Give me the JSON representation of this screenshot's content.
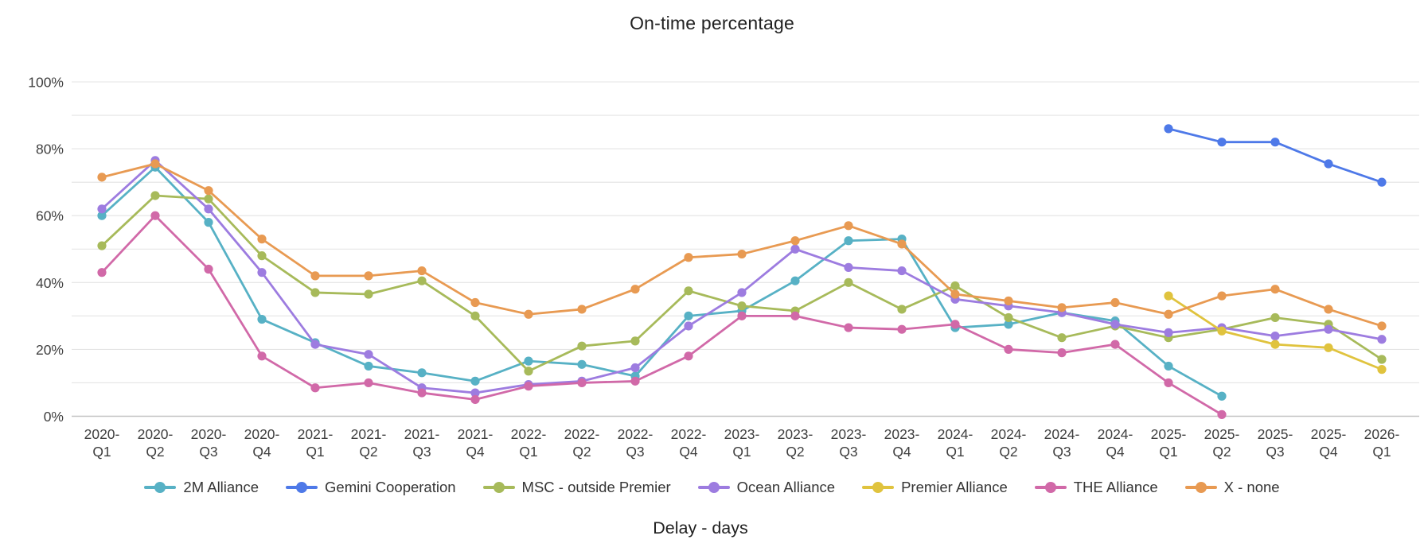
{
  "chart_data": {
    "type": "line",
    "title": "On-time percentage",
    "xlabel": "Delay - days",
    "ylabel": "",
    "ylim": [
      0,
      100
    ],
    "y_labeled_ticks": [
      0,
      20,
      40,
      60,
      80,
      100
    ],
    "y_tick_suffix": "%",
    "grid_step": 10,
    "grid_on": true,
    "legend_position": "bottom",
    "categories": [
      "2020-Q1",
      "2020-Q2",
      "2020-Q3",
      "2020-Q4",
      "2021-Q1",
      "2021-Q2",
      "2021-Q3",
      "2021-Q4",
      "2022-Q1",
      "2022-Q2",
      "2022-Q3",
      "2022-Q4",
      "2023-Q1",
      "2023-Q2",
      "2023-Q3",
      "2023-Q4",
      "2024-Q1",
      "2024-Q2",
      "2024-Q3",
      "2024-Q4",
      "2025-Q1",
      "2025-Q2",
      "2025-Q3",
      "2025-Q4",
      "2026-Q1"
    ],
    "series": [
      {
        "name": "2M Alliance",
        "color": "#57b1c5",
        "values": [
          60,
          74.5,
          58,
          29,
          22,
          15,
          13,
          10.5,
          16.5,
          15.5,
          12,
          30,
          31.5,
          40.5,
          52.5,
          53,
          26.5,
          27.5,
          31,
          28.5,
          15,
          6,
          null,
          null,
          null
        ]
      },
      {
        "name": "Gemini Cooperation",
        "color": "#4e79e8",
        "values": [
          null,
          null,
          null,
          null,
          null,
          null,
          null,
          null,
          null,
          null,
          null,
          null,
          null,
          null,
          null,
          null,
          null,
          null,
          null,
          null,
          86,
          82,
          82,
          75.5,
          70
        ]
      },
      {
        "name": "MSC - outside Premier",
        "color": "#a7ba5a",
        "values": [
          51,
          66,
          65,
          48,
          37,
          36.5,
          40.5,
          30,
          13.5,
          21,
          22.5,
          37.5,
          33,
          31.5,
          40,
          32,
          39,
          29.5,
          23.5,
          27,
          23.5,
          26,
          29.5,
          27.5,
          17
        ]
      },
      {
        "name": "Ocean Alliance",
        "color": "#9d7ce0",
        "values": [
          62,
          76.5,
          62,
          43,
          21.5,
          18.5,
          8.5,
          7,
          9.5,
          10.5,
          14.5,
          27,
          37,
          50,
          44.5,
          43.5,
          35,
          33,
          31,
          27.5,
          25,
          26.5,
          24,
          26,
          23
        ]
      },
      {
        "name": "Premier Alliance",
        "color": "#e0c33e",
        "values": [
          null,
          null,
          null,
          null,
          null,
          null,
          null,
          null,
          null,
          null,
          null,
          null,
          null,
          null,
          null,
          null,
          null,
          null,
          null,
          null,
          36,
          25.5,
          21.5,
          20.5,
          14
        ]
      },
      {
        "name": "THE Alliance",
        "color": "#d169a8",
        "values": [
          43,
          60,
          44,
          18,
          8.5,
          10,
          7,
          5,
          9,
          10,
          10.5,
          18,
          30,
          30,
          26.5,
          26,
          27.5,
          20,
          19,
          21.5,
          10,
          0.5,
          null,
          null,
          null
        ]
      },
      {
        "name": "X - none",
        "color": "#e89a52",
        "values": [
          71.5,
          75.5,
          67.5,
          53,
          42,
          42,
          43.5,
          34,
          30.5,
          32,
          38,
          47.5,
          48.5,
          52.5,
          57,
          51.5,
          36.5,
          34.5,
          32.5,
          34,
          30.5,
          36,
          38,
          32,
          27
        ]
      }
    ]
  }
}
